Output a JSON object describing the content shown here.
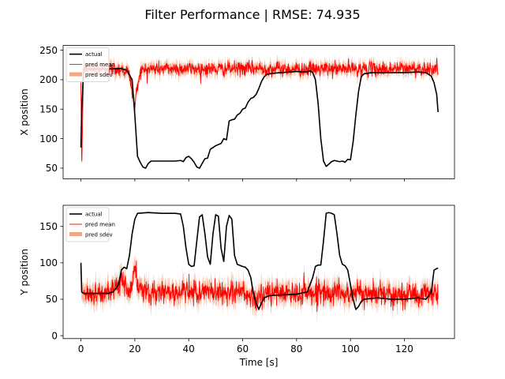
{
  "figure": {
    "title": "Filter Performance | RMSE: 74.935"
  },
  "colors": {
    "actual": "#000000",
    "pred_mean": "#ff0000",
    "pred_sdev": "#f4a582"
  },
  "chart_data": [
    {
      "type": "line",
      "title": "",
      "xlabel": "",
      "ylabel": "X position",
      "xlim": [
        -6.6,
        138.6
      ],
      "ylim": [
        32,
        258
      ],
      "xticks": [
        0,
        20,
        40,
        60,
        80,
        100,
        120
      ],
      "show_xticklabels": false,
      "yticks": [
        50,
        100,
        150,
        200,
        250
      ],
      "grid": false,
      "legend": {
        "placement": "top-left",
        "entries": [
          "actual",
          "pred mean",
          "pred sdev"
        ]
      },
      "series": [
        {
          "name": "actual",
          "kind": "line",
          "points": [
            [
              0,
              85
            ],
            [
              0.3,
              150
            ],
            [
              1,
              218
            ],
            [
              5,
              218
            ],
            [
              10,
              218
            ],
            [
              15,
              219
            ],
            [
              17,
              216
            ],
            [
              18,
              208
            ],
            [
              19,
              200
            ],
            [
              20,
              140
            ],
            [
              21,
              70
            ],
            [
              22,
              60
            ],
            [
              23,
              52
            ],
            [
              24,
              50
            ],
            [
              25,
              58
            ],
            [
              26,
              62
            ],
            [
              30,
              62
            ],
            [
              35,
              62
            ],
            [
              37,
              63
            ],
            [
              38,
              61
            ],
            [
              39,
              68
            ],
            [
              40,
              70
            ],
            [
              41,
              66
            ],
            [
              42,
              60
            ],
            [
              43,
              52
            ],
            [
              44,
              50
            ],
            [
              45,
              58
            ],
            [
              46,
              66
            ],
            [
              47,
              67
            ],
            [
              48,
              82
            ],
            [
              50,
              88
            ],
            [
              52,
              92
            ],
            [
              53,
              100
            ],
            [
              54,
              98
            ],
            [
              55,
              130
            ],
            [
              56,
              132
            ],
            [
              57,
              133
            ],
            [
              58,
              140
            ],
            [
              59,
              143
            ],
            [
              60,
              150
            ],
            [
              61,
              152
            ],
            [
              62,
              162
            ],
            [
              63,
              168
            ],
            [
              64,
              170
            ],
            [
              65,
              175
            ],
            [
              66,
              185
            ],
            [
              67,
              197
            ],
            [
              68,
              205
            ],
            [
              69,
              209
            ],
            [
              70,
              210
            ],
            [
              72,
              211
            ],
            [
              74,
              212
            ],
            [
              78,
              213
            ],
            [
              80,
              214
            ],
            [
              82,
              213
            ],
            [
              84,
              213
            ],
            [
              85,
              215
            ],
            [
              86,
              212
            ],
            [
              87,
              200
            ],
            [
              88,
              160
            ],
            [
              89,
              100
            ],
            [
              90,
              62
            ],
            [
              91,
              53
            ],
            [
              92,
              57
            ],
            [
              93,
              61
            ],
            [
              94,
              63
            ],
            [
              95,
              62
            ],
            [
              96,
              61
            ],
            [
              97,
              62
            ],
            [
              98,
              60
            ],
            [
              99,
              65
            ],
            [
              100,
              64
            ],
            [
              101,
              95
            ],
            [
              102,
              140
            ],
            [
              103,
              180
            ],
            [
              104,
              205
            ],
            [
              105,
              210
            ],
            [
              108,
              212
            ],
            [
              115,
              212
            ],
            [
              120,
              212
            ],
            [
              125,
              213
            ],
            [
              128,
              212
            ],
            [
              130,
              206
            ],
            [
              131,
              195
            ],
            [
              132,
              175
            ],
            [
              132.5,
              145
            ]
          ]
        },
        {
          "name": "pred mean",
          "kind": "noisy-line",
          "points": [
            [
              0,
              195
            ],
            [
              0.3,
              45
            ],
            [
              0.7,
              150
            ],
            [
              1,
              218
            ],
            [
              5,
              218
            ],
            [
              10,
              218
            ],
            [
              15,
              218
            ],
            [
              17,
              215
            ],
            [
              18,
              208
            ],
            [
              19,
              180
            ],
            [
              20,
              155
            ],
            [
              21,
              190
            ],
            [
              22,
              215
            ],
            [
              25,
              218
            ],
            [
              30,
              219
            ],
            [
              40,
              219
            ],
            [
              50,
              218
            ],
            [
              60,
              219
            ],
            [
              70,
              219
            ],
            [
              80,
              218
            ],
            [
              90,
              218
            ],
            [
              100,
              219
            ],
            [
              110,
              218
            ],
            [
              120,
              219
            ],
            [
              130,
              219
            ],
            [
              132.5,
              219
            ]
          ],
          "noise_sd": 6
        },
        {
          "name": "pred sdev",
          "kind": "band",
          "points": [
            [
              0,
              195
            ],
            [
              0.3,
              45
            ],
            [
              0.7,
              150
            ],
            [
              1,
              218
            ],
            [
              5,
              218
            ],
            [
              10,
              218
            ],
            [
              15,
              218
            ],
            [
              17,
              215
            ],
            [
              18,
              208
            ],
            [
              19,
              180
            ],
            [
              20,
              155
            ],
            [
              21,
              190
            ],
            [
              22,
              215
            ],
            [
              25,
              218
            ],
            [
              30,
              219
            ],
            [
              40,
              219
            ],
            [
              50,
              218
            ],
            [
              60,
              219
            ],
            [
              70,
              219
            ],
            [
              80,
              218
            ],
            [
              90,
              218
            ],
            [
              100,
              219
            ],
            [
              110,
              218
            ],
            [
              120,
              219
            ],
            [
              130,
              219
            ],
            [
              132.5,
              219
            ]
          ],
          "sdev": 9
        }
      ]
    },
    {
      "type": "line",
      "title": "",
      "xlabel": "Time [s]",
      "ylabel": "Y position",
      "xlim": [
        -6.6,
        138.6
      ],
      "ylim": [
        -4,
        179
      ],
      "xticks": [
        0,
        20,
        40,
        60,
        80,
        100,
        120
      ],
      "show_xticklabels": true,
      "yticks": [
        0,
        50,
        100,
        150
      ],
      "grid": false,
      "legend": {
        "placement": "top-left",
        "entries": [
          "actual",
          "pred mean",
          "pred sdev"
        ]
      },
      "series": [
        {
          "name": "actual",
          "kind": "line",
          "points": [
            [
              0,
              100
            ],
            [
              0.3,
              60
            ],
            [
              1,
              58
            ],
            [
              5,
              58
            ],
            [
              10,
              58
            ],
            [
              12,
              60
            ],
            [
              14,
              70
            ],
            [
              15,
              90
            ],
            [
              16,
              94
            ],
            [
              17,
              92
            ],
            [
              18,
              110
            ],
            [
              19,
              140
            ],
            [
              20,
              160
            ],
            [
              21,
              168
            ],
            [
              25,
              169
            ],
            [
              30,
              168
            ],
            [
              35,
              168
            ],
            [
              37,
              167
            ],
            [
              38,
              150
            ],
            [
              39,
              120
            ],
            [
              40,
              98
            ],
            [
              41,
              95
            ],
            [
              42,
              96
            ],
            [
              43,
              130
            ],
            [
              44,
              163
            ],
            [
              45,
              166
            ],
            [
              46,
              140
            ],
            [
              47,
              108
            ],
            [
              48,
              98
            ],
            [
              49,
              140
            ],
            [
              50,
              166
            ],
            [
              51,
              164
            ],
            [
              52,
              120
            ],
            [
              53,
              102
            ],
            [
              54,
              150
            ],
            [
              55,
              165
            ],
            [
              56,
              160
            ],
            [
              57,
              110
            ],
            [
              58,
              98
            ],
            [
              60,
              95
            ],
            [
              61,
              94
            ],
            [
              62,
              90
            ],
            [
              63,
              80
            ],
            [
              64,
              58
            ],
            [
              65,
              45
            ],
            [
              66,
              36
            ],
            [
              67,
              45
            ],
            [
              68,
              52
            ],
            [
              70,
              55
            ],
            [
              75,
              56
            ],
            [
              80,
              57
            ],
            [
              84,
              60
            ],
            [
              86,
              80
            ],
            [
              87,
              95
            ],
            [
              88,
              97
            ],
            [
              89,
              97
            ],
            [
              90,
              130
            ],
            [
              91,
              168
            ],
            [
              92,
              169
            ],
            [
              93,
              168
            ],
            [
              94,
              166
            ],
            [
              95,
              140
            ],
            [
              96,
              110
            ],
            [
              97,
              98
            ],
            [
              98,
              96
            ],
            [
              99,
              90
            ],
            [
              100,
              70
            ],
            [
              101,
              50
            ],
            [
              102,
              36
            ],
            [
              103,
              40
            ],
            [
              104,
              47
            ],
            [
              105,
              50
            ],
            [
              110,
              52
            ],
            [
              115,
              50
            ],
            [
              120,
              50
            ],
            [
              125,
              52
            ],
            [
              128,
              50
            ],
            [
              130,
              60
            ],
            [
              131,
              90
            ],
            [
              132.5,
              93
            ]
          ]
        },
        {
          "name": "pred mean",
          "kind": "noisy-line",
          "points": [
            [
              0,
              100
            ],
            [
              0.2,
              60
            ],
            [
              1,
              58
            ],
            [
              10,
              58
            ],
            [
              14,
              62
            ],
            [
              15,
              85
            ],
            [
              16,
              72
            ],
            [
              17,
              65
            ],
            [
              19,
              62
            ],
            [
              20,
              100
            ],
            [
              21,
              64
            ],
            [
              25,
              60
            ],
            [
              40,
              60
            ],
            [
              60,
              60
            ],
            [
              63,
              52
            ],
            [
              65,
              45
            ],
            [
              66,
              55
            ],
            [
              70,
              58
            ],
            [
              80,
              58
            ],
            [
              90,
              60
            ],
            [
              100,
              58
            ],
            [
              110,
              58
            ],
            [
              120,
              57
            ],
            [
              130,
              58
            ],
            [
              132.5,
              58
            ]
          ],
          "noise_sd": 8
        },
        {
          "name": "pred sdev",
          "kind": "band",
          "points": [
            [
              0,
              100
            ],
            [
              0.2,
              60
            ],
            [
              1,
              58
            ],
            [
              10,
              58
            ],
            [
              14,
              62
            ],
            [
              15,
              85
            ],
            [
              16,
              72
            ],
            [
              17,
              65
            ],
            [
              19,
              62
            ],
            [
              20,
              100
            ],
            [
              21,
              64
            ],
            [
              25,
              60
            ],
            [
              40,
              60
            ],
            [
              60,
              60
            ],
            [
              63,
              52
            ],
            [
              65,
              45
            ],
            [
              66,
              55
            ],
            [
              70,
              58
            ],
            [
              80,
              58
            ],
            [
              90,
              60
            ],
            [
              100,
              58
            ],
            [
              110,
              58
            ],
            [
              120,
              57
            ],
            [
              130,
              58
            ],
            [
              132.5,
              58
            ]
          ],
          "sdev": 12
        }
      ]
    }
  ]
}
